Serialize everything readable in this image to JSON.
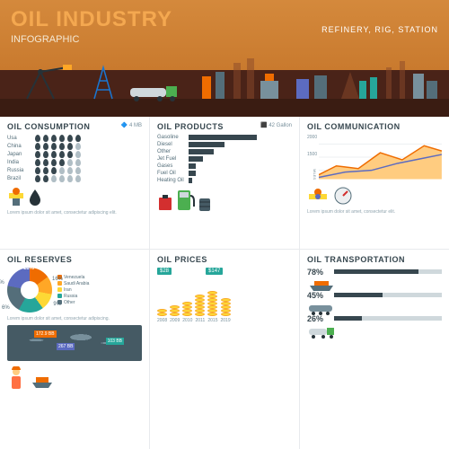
{
  "hero": {
    "title": "OIL INDUSTRY",
    "subtitle": "INFOGRAPHIC",
    "tagline": "REFINERY, RIG, STATION",
    "bg_sky": "#d4893c",
    "bg_ground": "#4a2318"
  },
  "consumption": {
    "title": "OIL CONSUMPTION",
    "note": "4 MB",
    "countries": [
      "Usa",
      "China",
      "Japan",
      "India",
      "Russia",
      "Brazil"
    ],
    "drops": [
      6,
      5,
      5,
      4,
      3,
      2
    ],
    "lorem": "Lorem ipsum dolor sit amet, consectetur adipiscing elit."
  },
  "products": {
    "title": "OIL PRODUCTS",
    "note": "42 Gallon",
    "items": [
      "Gasoline",
      "Diesel",
      "Other",
      "Jet Fuel",
      "Gases",
      "Fuel Oil",
      "Heating Oil"
    ],
    "values": [
      19,
      10,
      7,
      4,
      2,
      2,
      1
    ],
    "color": "#37474f"
  },
  "communication": {
    "title": "OIL COMMUNICATION",
    "ylabel": "MILES",
    "yticks": [
      "2000",
      "1500"
    ],
    "area_color": "#ffa726",
    "line_color": "#5c6bc0"
  },
  "reserves": {
    "title": "OIL RESERVES",
    "slices": [
      {
        "label": "Venezuela",
        "pct": "18%",
        "color": "#ef6c00"
      },
      {
        "label": "Saudi Arabia",
        "pct": "16%",
        "color": "#ffa726"
      },
      {
        "label": "Iran",
        "pct": "9%",
        "color": "#fdd835"
      },
      {
        "label": "Russia",
        "pct": "6%",
        "color": "#26a69a"
      },
      {
        "label": "Other",
        "pct": "",
        "color": "#546e7a"
      },
      {
        "label": "",
        "pct": "3%",
        "color": "#5c6bc0"
      }
    ],
    "map_badges": [
      "172.9 BB",
      "267 BB",
      "103 BB"
    ]
  },
  "prices": {
    "title": "OIL PRICES",
    "years": [
      "2008",
      "2009",
      "2010",
      "2011",
      "2015",
      "2019"
    ],
    "heights": [
      2,
      3,
      4,
      6,
      7,
      5
    ],
    "callouts": [
      "$28",
      "$147"
    ]
  },
  "transport": {
    "title": "OIL TRANSPORTATION",
    "rows": [
      {
        "pct": "78%",
        "icon": "ship",
        "color": "#ef6c00"
      },
      {
        "pct": "45%",
        "icon": "rail",
        "color": "#546e7a"
      },
      {
        "pct": "26%",
        "icon": "truck",
        "color": "#26a69a"
      }
    ]
  }
}
